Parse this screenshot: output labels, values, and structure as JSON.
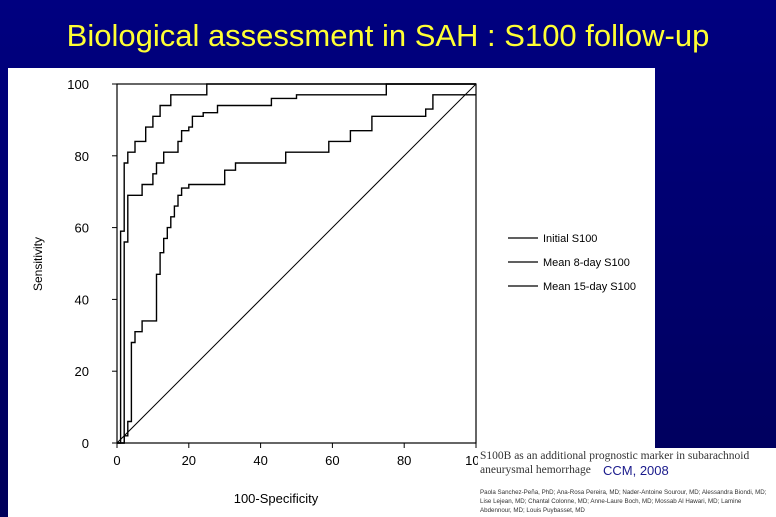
{
  "slide": {
    "title": "Biological assessment in SAH : S100 follow-up",
    "colors": {
      "background": "#000080",
      "title": "#ffff33"
    }
  },
  "chart_data": {
    "type": "line",
    "title": "",
    "xlabel": "100-Specificity",
    "ylabel": "Sensitivity",
    "xlim": [
      0,
      100
    ],
    "ylim": [
      0,
      100
    ],
    "x_ticks": [
      "0",
      "20",
      "40",
      "60",
      "80",
      "100"
    ],
    "y_ticks": [
      "0",
      "20",
      "40",
      "60",
      "80",
      "100"
    ],
    "legend_position": "right",
    "diagonal_reference": true,
    "series": [
      {
        "name": "Initial S100",
        "x": [
          0,
          2,
          2,
          3,
          3,
          4,
          4,
          5,
          5,
          7,
          7,
          11,
          11,
          12,
          12,
          13,
          13,
          14,
          14,
          15,
          15,
          16,
          16,
          17,
          17,
          18,
          18,
          20,
          20,
          21,
          21,
          30,
          30,
          33,
          33,
          47,
          47,
          59,
          59,
          65,
          65,
          71,
          71,
          86,
          86,
          88,
          88,
          100
        ],
        "y": [
          0,
          0,
          2,
          2,
          6,
          6,
          28,
          28,
          31,
          31,
          34,
          34,
          47,
          47,
          53,
          53,
          57,
          57,
          60,
          60,
          63,
          63,
          66,
          66,
          69,
          69,
          71,
          71,
          72,
          72,
          72,
          72,
          76,
          76,
          78,
          78,
          81,
          81,
          84,
          84,
          87,
          87,
          91,
          91,
          93,
          93,
          97,
          97
        ]
      },
      {
        "name": "Mean 8-day S100",
        "x": [
          0,
          2,
          2,
          3,
          3,
          6,
          6,
          7,
          7,
          9,
          9,
          10,
          10,
          11,
          11,
          13,
          13,
          17,
          17,
          18,
          18,
          20,
          20,
          21,
          21,
          24,
          24,
          28,
          28,
          43,
          43,
          50,
          50,
          72,
          72,
          75,
          75,
          88,
          88,
          100
        ],
        "y": [
          0,
          0,
          56,
          56,
          69,
          69,
          69,
          69,
          72,
          72,
          72,
          72,
          75,
          75,
          78,
          78,
          81,
          81,
          84,
          84,
          87,
          87,
          88,
          88,
          91,
          91,
          92,
          92,
          94,
          94,
          96,
          96,
          97,
          97,
          97,
          97,
          100,
          100,
          100,
          100
        ]
      },
      {
        "name": "Mean 15-day S100",
        "x": [
          0,
          1,
          1,
          2,
          2,
          3,
          3,
          5,
          5,
          8,
          8,
          10,
          10,
          12,
          12,
          15,
          15,
          25,
          25,
          100
        ],
        "y": [
          0,
          0,
          59,
          59,
          78,
          78,
          81,
          81,
          84,
          84,
          88,
          88,
          91,
          91,
          94,
          94,
          97,
          97,
          100,
          100
        ]
      }
    ]
  },
  "reference": {
    "article_title": "S100B as an additional prognostic marker in subarachnoid aneurysmal hemorrhage",
    "journal": "CCM, 2008",
    "authors": "Paola Sanchez-Peña, PhD; Ana-Rosa Pereira, MD; Nader-Antoine Sourour, MD; Alessandra Biondi, MD; Lise Lejean, MD; Chantal Colonne, MD; Anne-Laure Boch, MD; Mossab Al Hawari, MD; Lamine Abdennour, MD; Louis Puybasset, MD"
  }
}
